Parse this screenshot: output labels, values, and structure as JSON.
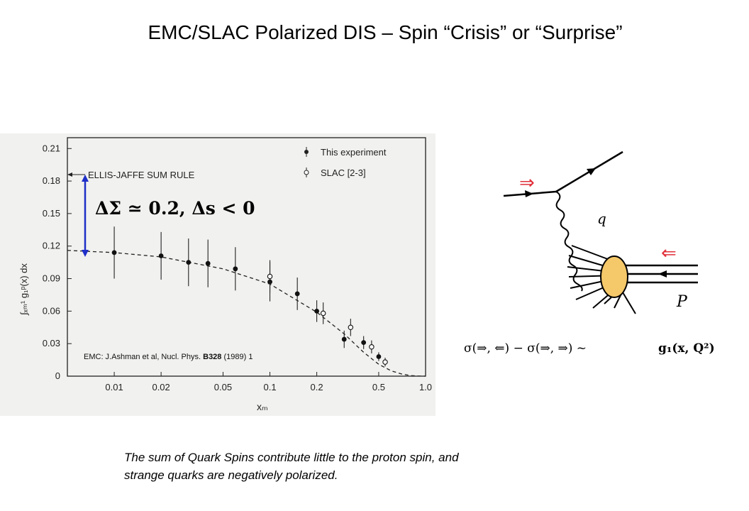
{
  "slide": {
    "title": "EMC/SLAC Polarized DIS – Spin “Crisis” or “Surprise”",
    "caption_line1": "The sum of Quark Spins contribute little to the proton spin, and",
    "caption_line2": "strange quarks are negatively polarized."
  },
  "plot": {
    "ellis_jaffe_label": "ELLIS-JAFFE SUM RULE",
    "legend_this": "This experiment",
    "legend_slac": "SLAC [2-3]",
    "annotation": "ΔΣ ≃ 0.2, Δs < 0",
    "reference_prefix": "EMC: J.Ashman et al, Nucl. Phys. ",
    "reference_volume": "B328",
    "reference_suffix": " (1989) 1",
    "ylabel": "∫ₓₘ¹ g₁ᵖ(x) dx",
    "xlabel": "xₘ"
  },
  "diagram": {
    "q_label": "q",
    "P_label": "P",
    "formula_lhs": "σ(⇒, ⇐) − σ(⇒, ⇒)  ~",
    "formula_rhs": "g₁(x, Q²)",
    "beam_color": "#e0303a",
    "blob_color": "#f5c86a"
  },
  "chart_data": {
    "type": "scatter",
    "title": "",
    "xlabel": "x_m",
    "ylabel": "∫_{x_m}^1 g_1^p(x) dx",
    "xscale": "log",
    "xlim": [
      0.005,
      1.0
    ],
    "ylim": [
      0,
      0.22
    ],
    "x_ticks": [
      0.01,
      0.02,
      0.05,
      0.1,
      0.2,
      0.5,
      1.0
    ],
    "x_tick_labels": [
      "0.01",
      "0.02",
      "0.05",
      "0.1",
      "0.2",
      "0.5",
      "1.0"
    ],
    "y_ticks": [
      0,
      0.03,
      0.06,
      0.09,
      0.12,
      0.15,
      0.18,
      0.21
    ],
    "y_tick_labels": [
      "0",
      "0.03",
      "0.06",
      "0.09",
      "0.12",
      "0.15",
      "0.18",
      "0.21"
    ],
    "ellis_jaffe": 0.189,
    "series": [
      {
        "name": "This experiment",
        "marker": "filled",
        "x": [
          0.01,
          0.02,
          0.03,
          0.04,
          0.06,
          0.1,
          0.15,
          0.2,
          0.3,
          0.4,
          0.5
        ],
        "y": [
          0.114,
          0.111,
          0.105,
          0.104,
          0.099,
          0.087,
          0.076,
          0.06,
          0.034,
          0.031,
          0.018
        ],
        "err": [
          0.024,
          0.022,
          0.022,
          0.022,
          0.02,
          0.018,
          0.015,
          0.01,
          0.008,
          0.006,
          0.004
        ]
      },
      {
        "name": "SLAC [2-3]",
        "marker": "open",
        "x": [
          0.1,
          0.22,
          0.33,
          0.45,
          0.55
        ],
        "y": [
          0.092,
          0.058,
          0.045,
          0.027,
          0.013
        ],
        "err": [
          0.015,
          0.01,
          0.008,
          0.006,
          0.004
        ]
      }
    ],
    "fit_curve": {
      "x": [
        0.005,
        0.01,
        0.02,
        0.05,
        0.1,
        0.2,
        0.3,
        0.4,
        0.5,
        0.6,
        0.7,
        0.8,
        0.9,
        1.0
      ],
      "y": [
        0.116,
        0.114,
        0.11,
        0.099,
        0.085,
        0.059,
        0.039,
        0.022,
        0.011,
        0.005,
        0.002,
        0.0005,
        0.0001,
        0
      ]
    }
  }
}
